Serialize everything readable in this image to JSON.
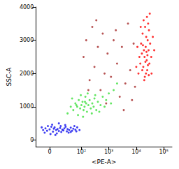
{
  "chart_data": {
    "type": "scatter",
    "x_label": "<PE-A>",
    "y_label": "SSC-A",
    "log": "x",
    "marker": "circle",
    "xlim": [
      -20,
      200000
    ],
    "xticks": [
      0,
      {
        "value": 100,
        "label": "10²"
      },
      {
        "value": 1000,
        "label": "10³"
      },
      {
        "value": 10000,
        "label": "10⁴"
      },
      {
        "value": 100000,
        "label": "10⁵"
      }
    ],
    "ylim": [
      -200,
      4000
    ],
    "yticks": [
      0,
      1000,
      2000,
      3000,
      4000
    ],
    "series": [
      {
        "color": "#a52a2a",
        "x": [
          120,
          150,
          200,
          250,
          300,
          400,
          500,
          600,
          700,
          900,
          1200,
          1500,
          2000,
          2500,
          3000,
          4000,
          5000,
          6000,
          7000,
          8000,
          180,
          350,
          800,
          1800,
          3500,
          9000
        ],
        "values": [
          2500,
          3000,
          1800,
          3400,
          2200,
          2800,
          1500,
          3200,
          2000,
          2600,
          1900,
          3000,
          2300,
          1300,
          2800,
          1700,
          3500,
          2100,
          1200,
          2900,
          1500,
          3600,
          1100,
          3300,
          900,
          1600
        ]
      },
      {
        "color": "#3fe03f",
        "x": [
          40,
          50,
          60,
          70,
          80,
          90,
          100,
          110,
          120,
          130,
          140,
          150,
          160,
          180,
          200,
          220,
          250,
          280,
          300,
          350,
          400,
          500,
          600,
          800,
          1000,
          1500,
          2000,
          30,
          45,
          75,
          95,
          115,
          170,
          240,
          320,
          450,
          700,
          1200,
          65,
          135
        ],
        "values": [
          1000,
          900,
          1100,
          1000,
          1200,
          950,
          1050,
          1150,
          900,
          1000,
          1300,
          1100,
          850,
          1050,
          1200,
          950,
          1100,
          1000,
          1250,
          900,
          1150,
          1050,
          1300,
          1200,
          1400,
          1500,
          1700,
          800,
          1250,
          750,
          1350,
          700,
          1400,
          800,
          1350,
          850,
          1000,
          1100,
          1050,
          1150
        ]
      },
      {
        "color": "#1010ee",
        "x": [
          -8,
          -5,
          -3,
          0,
          2,
          4,
          5,
          6,
          8,
          10,
          12,
          14,
          15,
          18,
          20,
          22,
          25,
          28,
          30,
          35,
          40,
          45,
          50,
          60,
          70,
          85,
          -10,
          -6,
          3,
          9,
          16,
          24,
          33,
          55,
          1,
          12,
          -2,
          7,
          40,
          65
        ],
        "values": [
          300,
          350,
          280,
          320,
          400,
          250,
          340,
          380,
          300,
          330,
          270,
          360,
          420,
          310,
          290,
          350,
          400,
          260,
          330,
          300,
          370,
          280,
          340,
          310,
          380,
          300,
          380,
          220,
          460,
          200,
          240,
          450,
          220,
          420,
          180,
          500,
          420,
          150,
          240,
          260
        ]
      },
      {
        "color": "#ff0000",
        "x": [
          12000,
          14000,
          16000,
          18000,
          20000,
          22000,
          24000,
          26000,
          28000,
          30000,
          15000,
          17000,
          19000,
          21000,
          23000,
          25000,
          27000,
          32000,
          35000,
          40000,
          13000,
          11000,
          16500,
          20500,
          24500,
          18500,
          22500,
          29000,
          36000,
          45000,
          10000,
          14500,
          26500,
          31000,
          19500,
          21500,
          23500,
          17500,
          25500,
          28500
        ],
        "values": [
          2000,
          2300,
          2600,
          2200,
          2500,
          2800,
          2400,
          3000,
          2700,
          2300,
          2900,
          3200,
          2700,
          3400,
          3100,
          2100,
          3500,
          2900,
          2500,
          3100,
          2500,
          2800,
          2100,
          1900,
          3700,
          3600,
          2000,
          3300,
          2000,
          2700,
          2200,
          3400,
          2250,
          3800,
          1800,
          2350,
          2650,
          2850,
          2550,
          1950
        ]
      }
    ]
  }
}
